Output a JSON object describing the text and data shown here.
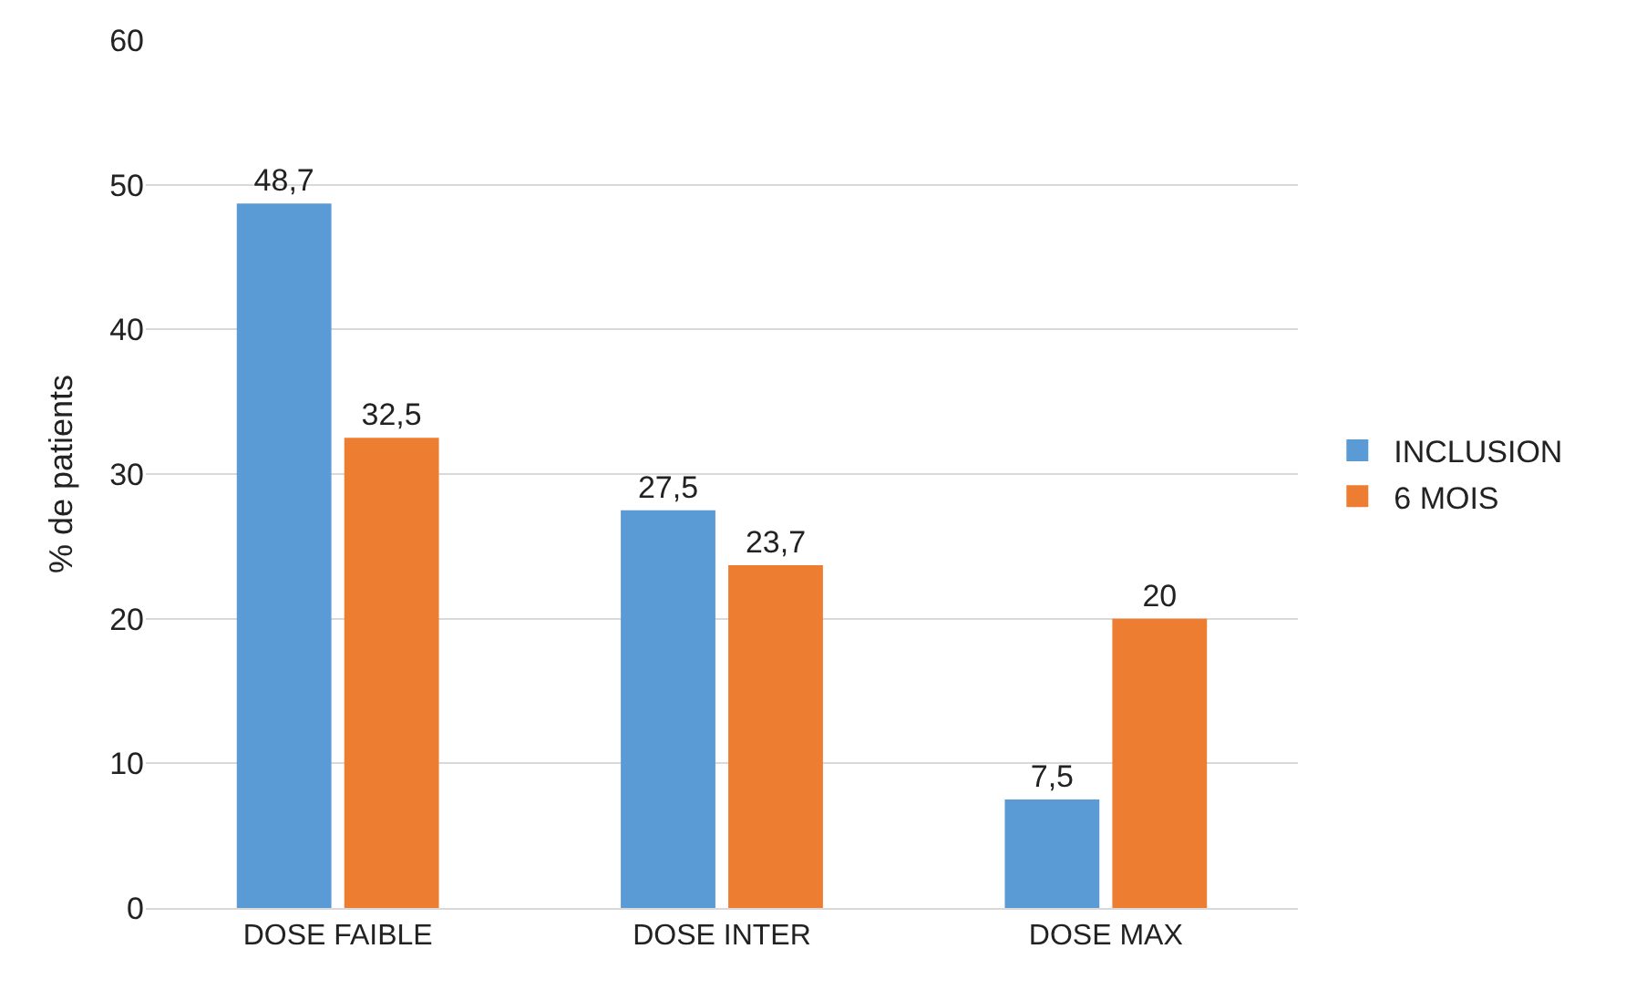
{
  "chart_data": {
    "type": "bar",
    "ylabel": "% de patients",
    "categories": [
      "DOSE FAIBLE",
      "DOSE INTER",
      "DOSE MAX"
    ],
    "series": [
      {
        "name": "INCLUSION",
        "color": "#5b9bd5",
        "values": [
          48.7,
          27.5,
          7.5
        ],
        "value_labels": [
          "48,7",
          "27,5",
          "7,5"
        ]
      },
      {
        "name": "6 MOIS",
        "color": "#ed7d31",
        "values": [
          32.5,
          23.7,
          20
        ],
        "value_labels": [
          "32,5",
          "23,7",
          "20"
        ]
      }
    ],
    "ylim": [
      0,
      60
    ],
    "yticks": [
      0,
      10,
      20,
      30,
      40,
      50,
      60
    ],
    "grid": "y",
    "legend": "right"
  }
}
